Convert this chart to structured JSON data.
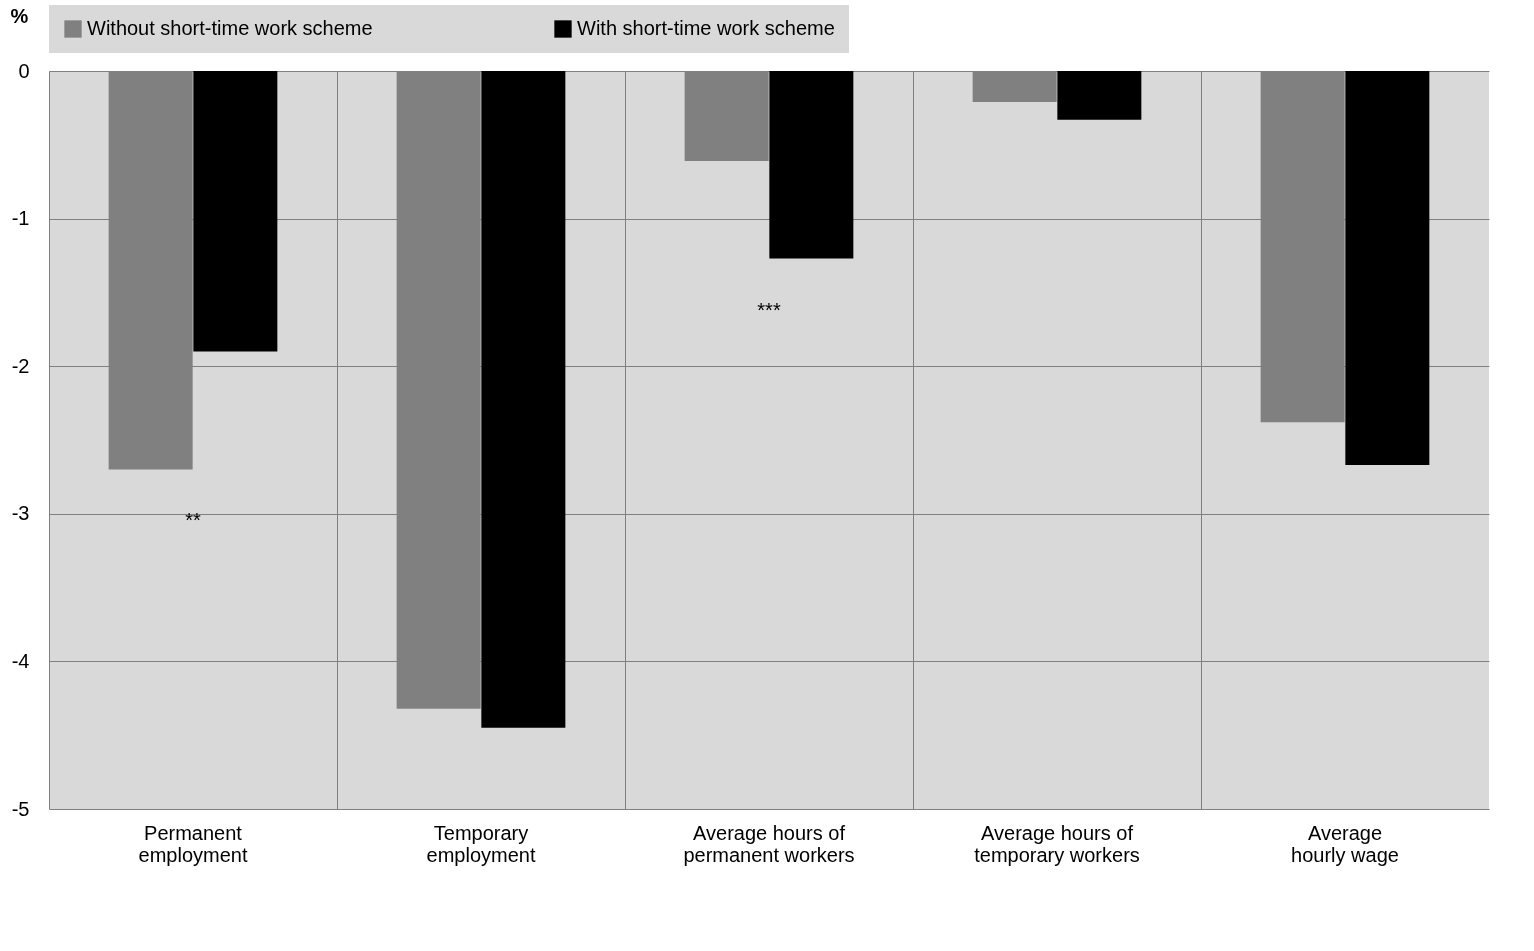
{
  "chart_data": {
    "type": "bar",
    "ylabel": "%",
    "categories": [
      "Permanent employment",
      "Temporary employment",
      "Average hours of permanent workers",
      "Average hours of temporary workers",
      "Average hourly wage"
    ],
    "series": [
      {
        "name": "Without short-time work scheme",
        "color": "#808080",
        "values": [
          -2.7,
          -4.32,
          -0.61,
          -0.21,
          -2.38
        ]
      },
      {
        "name": "With short-time work scheme",
        "color": "#000000",
        "values": [
          -1.9,
          -4.45,
          -1.27,
          -0.33,
          -2.67
        ]
      }
    ],
    "ylim": [
      -5,
      0
    ],
    "yticks": [
      -5,
      -4,
      -3,
      -2,
      -1,
      0
    ],
    "grid": true,
    "legend": "top",
    "annotations": [
      "**",
      "***"
    ]
  }
}
